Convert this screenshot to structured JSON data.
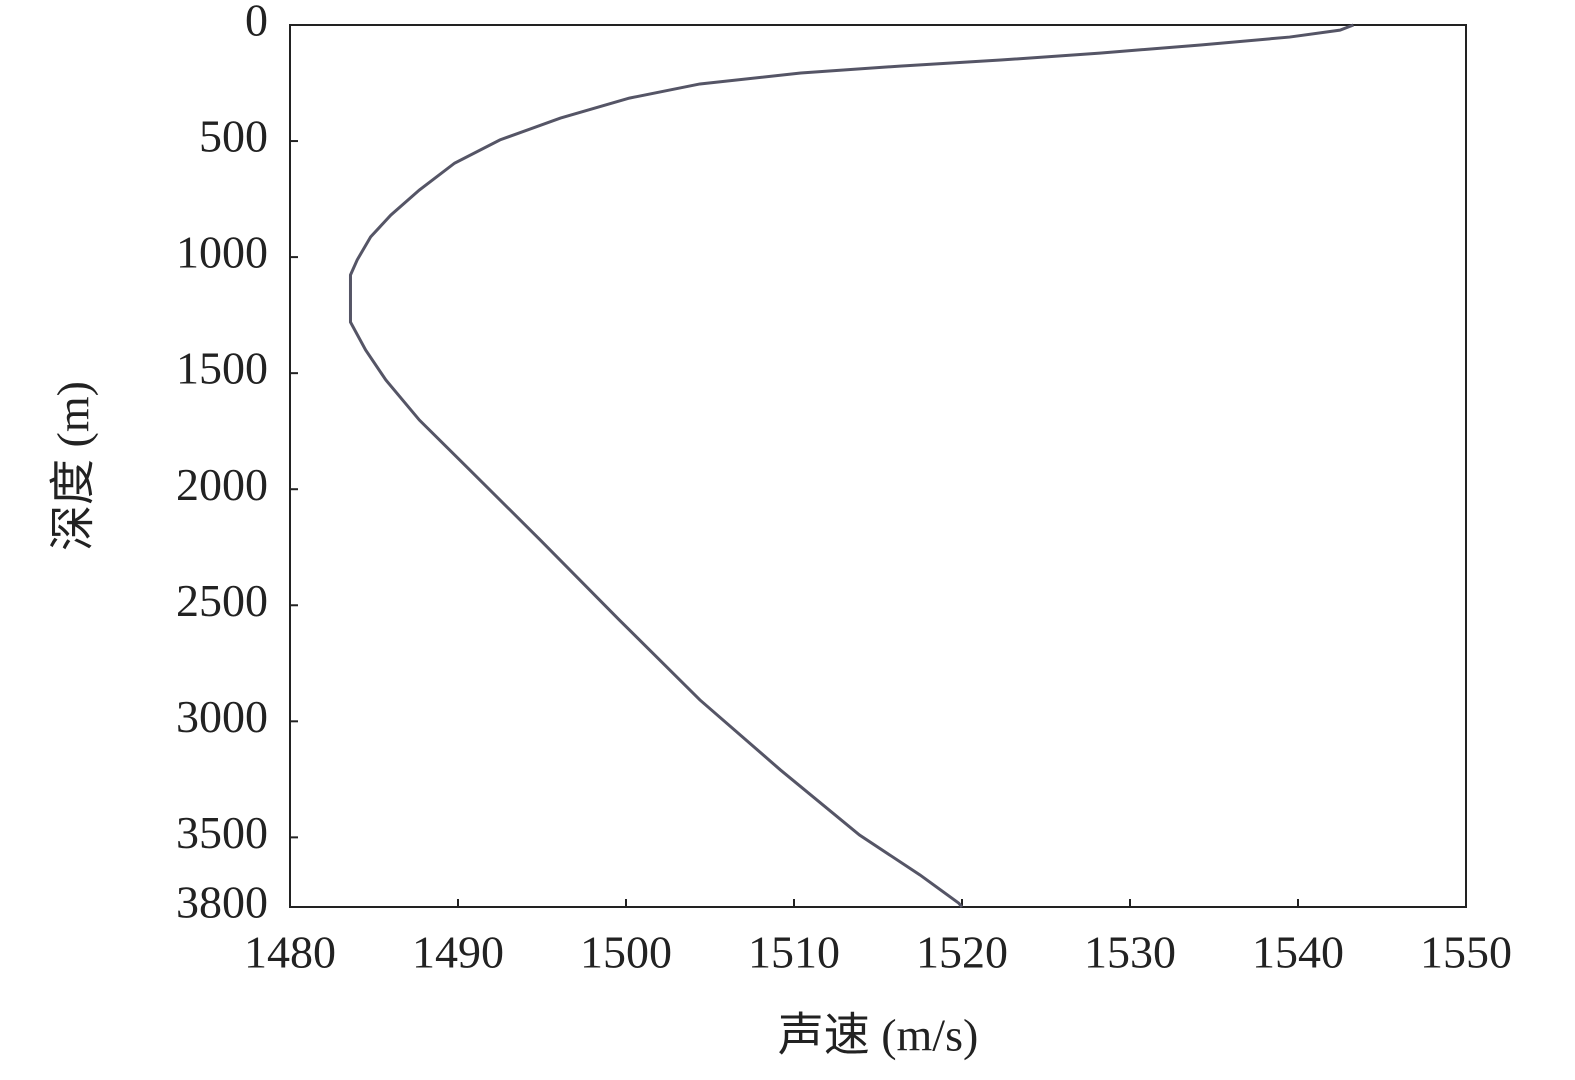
{
  "chart_data": {
    "type": "line",
    "x_label": "声速 (m/s)",
    "y_label": "深度 (m)",
    "x": [
      1543.3,
      1542.5,
      1539.5,
      1534.2,
      1528.2,
      1522.3,
      1516.3,
      1510.4,
      1504.4,
      1500.2,
      1496.1,
      1492.5,
      1489.8,
      1487.7,
      1486.0,
      1484.8,
      1484.0,
      1483.6,
      1483.6,
      1484.5,
      1485.7,
      1487.7,
      1490.7,
      1494.9,
      1499.6,
      1504.4,
      1509.2,
      1513.9,
      1517.5,
      1519.8,
      1520.0
    ],
    "values": [
      0,
      22,
      52,
      86,
      121,
      151,
      177,
      207,
      254,
      315,
      401,
      495,
      595,
      711,
      819,
      913,
      1012,
      1077,
      1280,
      1400,
      1529,
      1702,
      1917,
      2219,
      2563,
      2908,
      3210,
      3490,
      3662,
      3783,
      3800
    ],
    "color": "#555566",
    "xlim": [
      1480,
      1550
    ],
    "xticks": [
      1480,
      1490,
      1500,
      1510,
      1520,
      1530,
      1540,
      1550
    ],
    "ylim": [
      0,
      3800
    ],
    "yticks": [
      0,
      500,
      1000,
      1500,
      2000,
      2500,
      3000,
      3500,
      3800
    ],
    "y_inverted": true,
    "grid": false
  }
}
